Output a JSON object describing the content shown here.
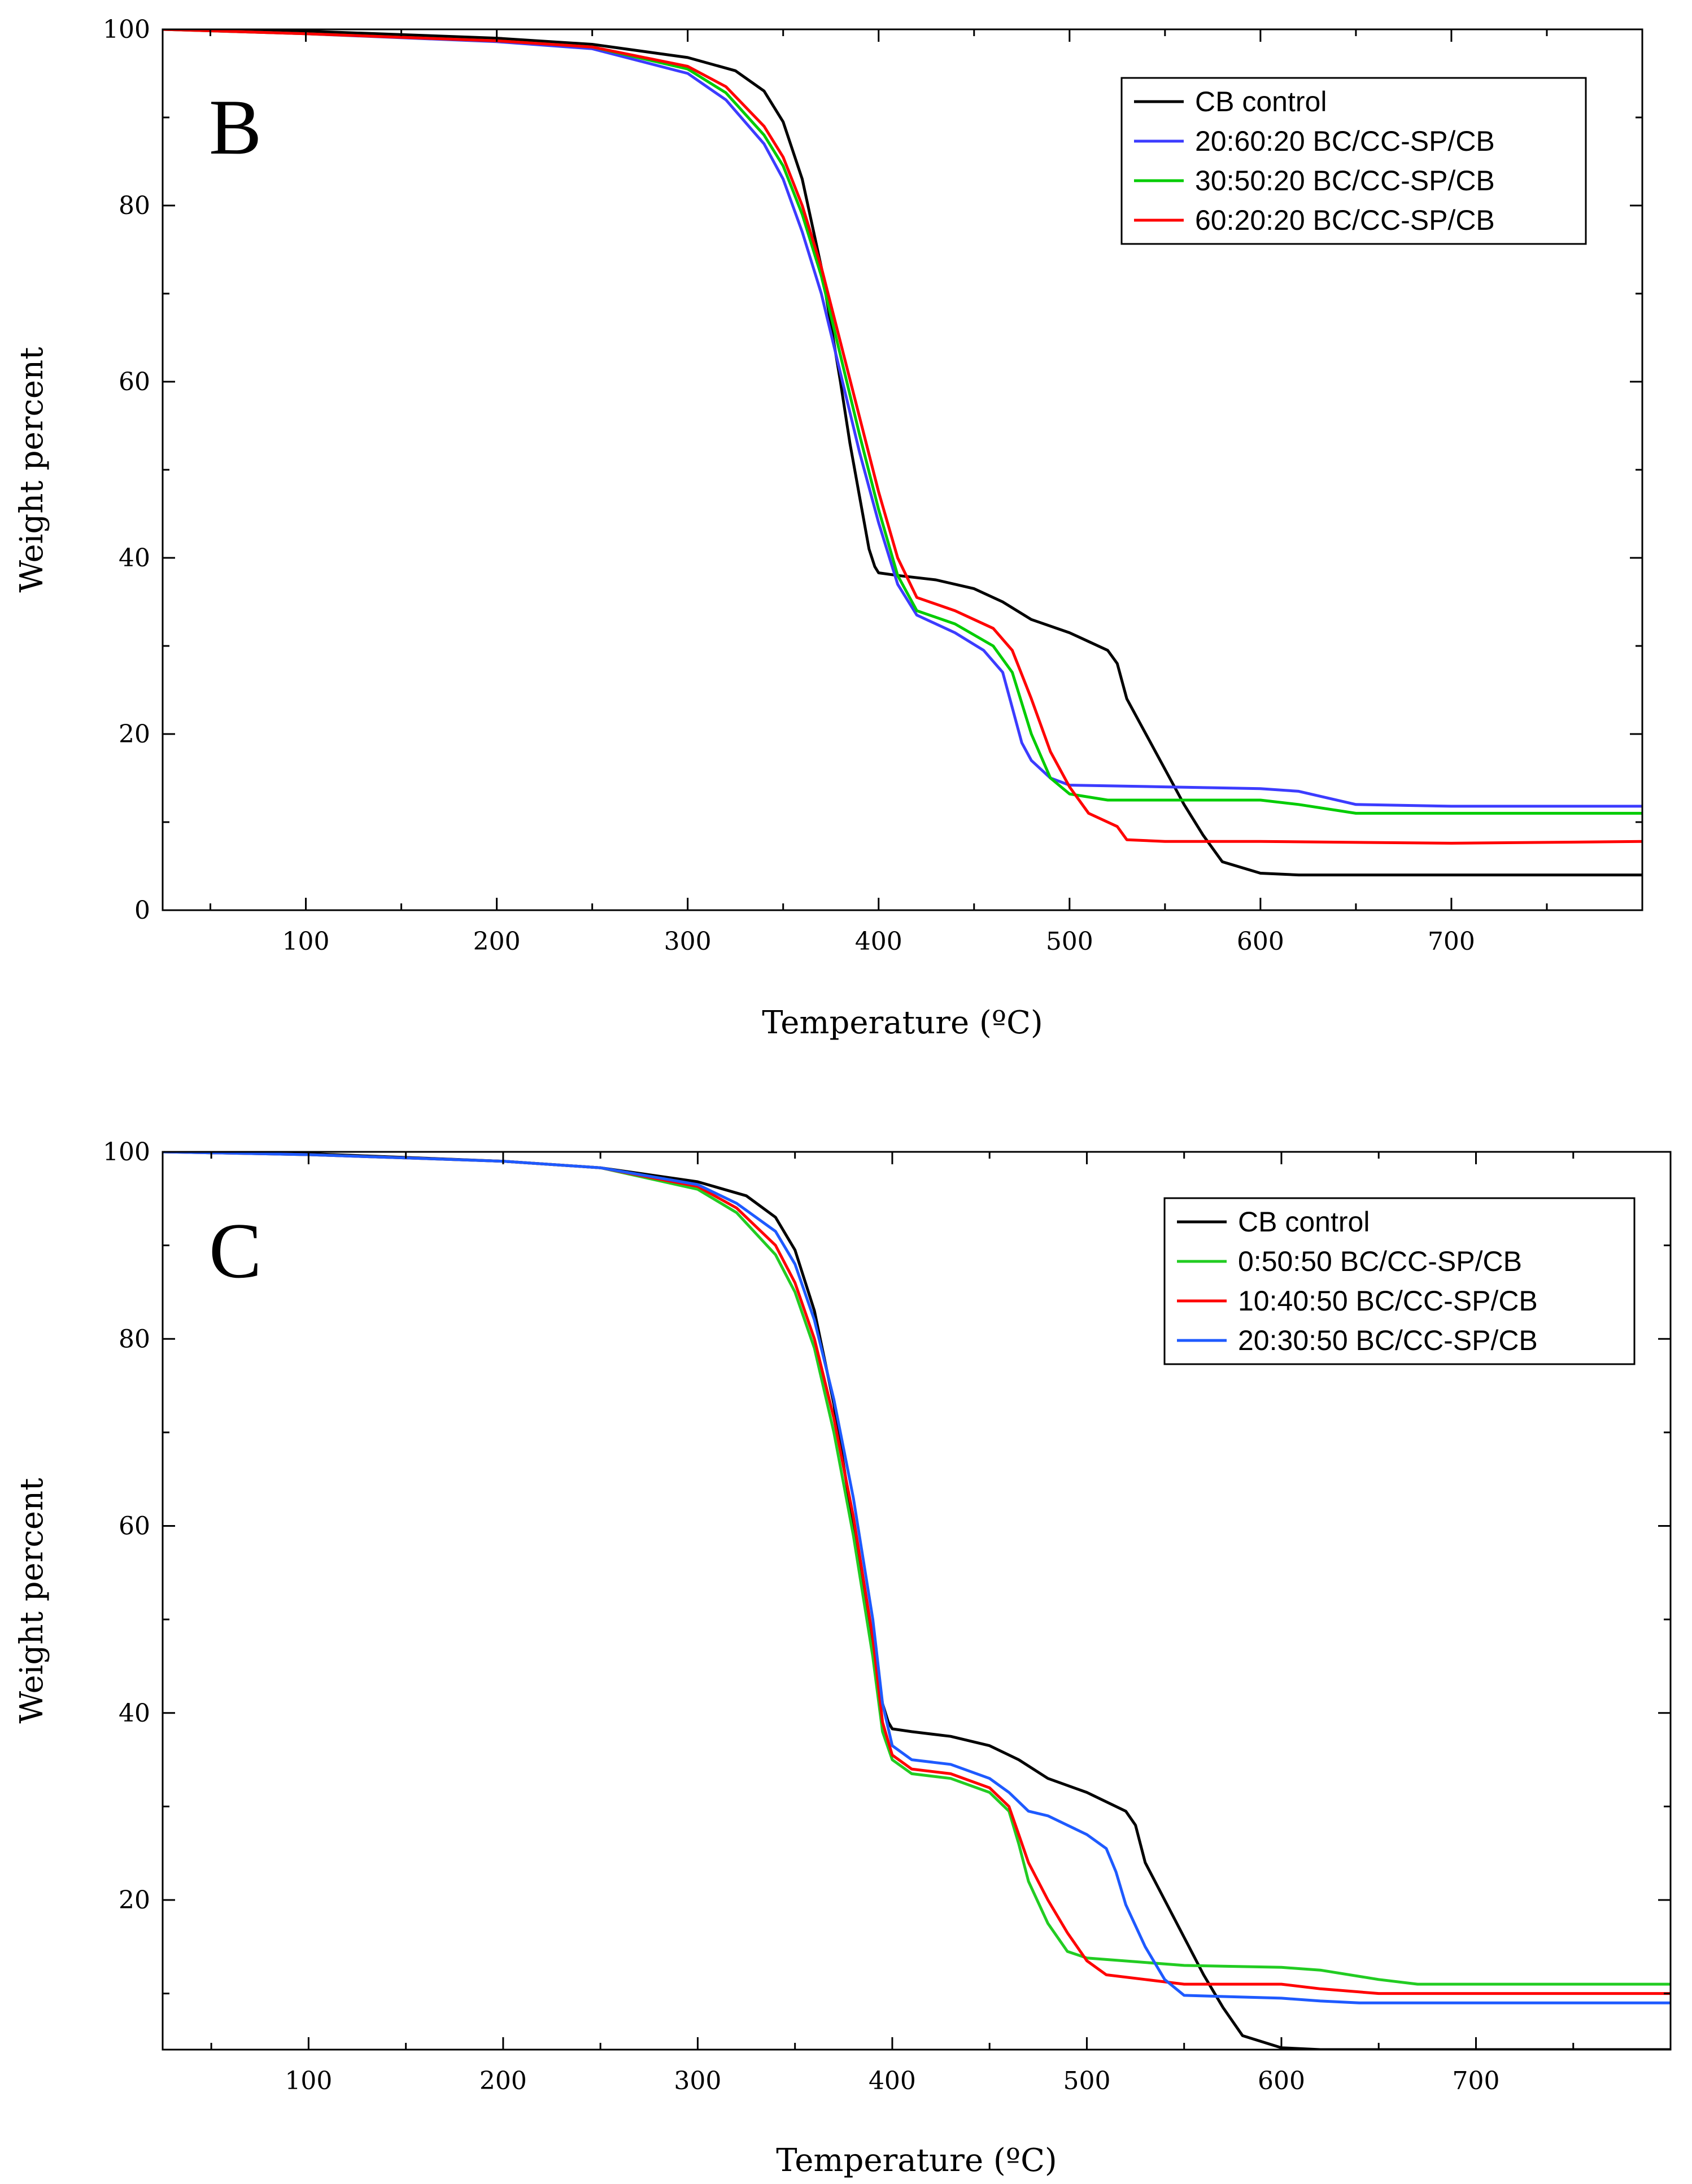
{
  "chart_data": [
    {
      "type": "line",
      "panel_label": "B",
      "xlabel": "Temperature (ºC)",
      "ylabel": "Weight percent",
      "xlim": [
        25,
        800
      ],
      "ylim": [
        0,
        100
      ],
      "xticks": [
        100,
        200,
        300,
        400,
        500,
        600,
        700
      ],
      "yticks": [
        0,
        20,
        40,
        60,
        80,
        100
      ],
      "grid": false,
      "legend_position": "top-right",
      "series": [
        {
          "name": "CB control",
          "color": "#000000",
          "x": [
            25,
            100,
            200,
            250,
            300,
            325,
            340,
            350,
            360,
            370,
            380,
            385,
            390,
            395,
            398,
            400,
            410,
            430,
            450,
            465,
            480,
            500,
            510,
            520,
            525,
            530,
            545,
            560,
            570,
            580,
            600,
            620,
            700,
            800
          ],
          "y": [
            100,
            99.8,
            99.0,
            98.3,
            96.8,
            95.3,
            93.0,
            89.5,
            83.0,
            73.0,
            60.0,
            53.0,
            47.0,
            41.0,
            39.0,
            38.3,
            38.0,
            37.5,
            36.5,
            35.0,
            33.0,
            31.5,
            30.5,
            29.5,
            28.0,
            24.0,
            18.0,
            12.0,
            8.5,
            5.5,
            4.2,
            4.0,
            4.0,
            4.0
          ]
        },
        {
          "name": "20:60:20 BC/CC-SP/CB",
          "color": "#3c3cff",
          "x": [
            25,
            100,
            200,
            250,
            300,
            320,
            340,
            350,
            360,
            370,
            380,
            390,
            400,
            410,
            420,
            440,
            455,
            465,
            470,
            475,
            480,
            490,
            500,
            550,
            600,
            620,
            650,
            700,
            800
          ],
          "y": [
            100,
            99.5,
            98.6,
            97.8,
            95.0,
            92.0,
            87.0,
            83.0,
            77.0,
            70.0,
            61.0,
            52.0,
            44.0,
            37.0,
            33.5,
            31.5,
            29.5,
            27.0,
            23.0,
            19.0,
            17.0,
            15.0,
            14.2,
            14.0,
            13.8,
            13.5,
            12.0,
            11.8,
            11.8
          ]
        },
        {
          "name": "30:50:20 BC/CC-SP/CB",
          "color": "#00cc00",
          "x": [
            25,
            100,
            200,
            250,
            300,
            320,
            340,
            350,
            360,
            370,
            380,
            390,
            400,
            410,
            420,
            440,
            460,
            470,
            480,
            490,
            500,
            520,
            600,
            620,
            650,
            700,
            800
          ],
          "y": [
            100,
            99.5,
            98.7,
            98.0,
            95.5,
            92.8,
            88.0,
            84.5,
            79.0,
            72.0,
            63.0,
            54.0,
            45.5,
            38.0,
            34.0,
            32.5,
            30.0,
            27.0,
            20.0,
            15.0,
            13.2,
            12.5,
            12.5,
            12.0,
            11.0,
            11.0,
            11.0
          ]
        },
        {
          "name": "60:20:20 BC/CC-SP/CB",
          "color": "#ff0000",
          "x": [
            25,
            100,
            200,
            250,
            300,
            320,
            340,
            350,
            360,
            370,
            380,
            390,
            400,
            410,
            420,
            440,
            460,
            470,
            480,
            490,
            500,
            510,
            520,
            525,
            530,
            550,
            600,
            700,
            800
          ],
          "y": [
            100,
            99.5,
            98.7,
            98.0,
            95.8,
            93.5,
            89.0,
            85.5,
            80.0,
            73.0,
            64.5,
            56.0,
            47.5,
            40.0,
            35.5,
            34.0,
            32.0,
            29.5,
            24.0,
            18.0,
            14.0,
            11.0,
            10.0,
            9.5,
            8.0,
            7.8,
            7.8,
            7.6,
            7.8
          ]
        }
      ]
    },
    {
      "type": "line",
      "panel_label": "C",
      "xlabel": "Temperature (ºC)",
      "ylabel": "Weight percent",
      "xlim": [
        25,
        800
      ],
      "ylim": [
        4,
        100
      ],
      "xticks": [
        100,
        200,
        300,
        400,
        500,
        600,
        700
      ],
      "yticks": [
        20,
        40,
        60,
        80,
        100
      ],
      "grid": false,
      "legend_position": "top-right",
      "series": [
        {
          "name": "CB control",
          "color": "#000000",
          "x": [
            25,
            100,
            200,
            250,
            300,
            325,
            340,
            350,
            360,
            370,
            380,
            385,
            390,
            395,
            398,
            400,
            410,
            430,
            450,
            465,
            480,
            500,
            510,
            520,
            525,
            530,
            545,
            560,
            570,
            580,
            600,
            620,
            700,
            800
          ],
          "y": [
            100,
            99.8,
            99.0,
            98.3,
            96.8,
            95.3,
            93.0,
            89.5,
            83.0,
            73.0,
            60.0,
            53.0,
            47.0,
            41.0,
            39.0,
            38.3,
            38.0,
            37.5,
            36.5,
            35.0,
            33.0,
            31.5,
            30.5,
            29.5,
            28.0,
            24.0,
            18.0,
            12.0,
            8.5,
            5.5,
            4.2,
            4.0,
            4.0,
            4.0
          ]
        },
        {
          "name": "0:50:50 BC/CC-SP/CB",
          "color": "#22cc22",
          "x": [
            25,
            100,
            200,
            250,
            300,
            320,
            340,
            350,
            360,
            370,
            380,
            390,
            395,
            400,
            410,
            430,
            450,
            460,
            465,
            470,
            480,
            490,
            500,
            550,
            600,
            620,
            650,
            670,
            700,
            800
          ],
          "y": [
            100,
            99.7,
            99.0,
            98.3,
            96.0,
            93.5,
            89.0,
            85.0,
            79.0,
            70.0,
            59.0,
            46.0,
            38.0,
            35.0,
            33.5,
            33.0,
            31.5,
            29.5,
            26.0,
            22.0,
            17.5,
            14.5,
            13.8,
            13.0,
            12.8,
            12.5,
            11.5,
            11.0,
            11.0,
            11.0
          ]
        },
        {
          "name": "10:40:50 BC/CC-SP/CB",
          "color": "#ff0000",
          "x": [
            25,
            100,
            200,
            250,
            300,
            320,
            340,
            350,
            360,
            370,
            380,
            390,
            395,
            400,
            410,
            430,
            450,
            460,
            465,
            470,
            480,
            490,
            500,
            510,
            530,
            550,
            600,
            620,
            650,
            700,
            800
          ],
          "y": [
            100,
            99.7,
            99.0,
            98.3,
            96.3,
            94.0,
            90.0,
            86.0,
            80.0,
            71.5,
            61.0,
            48.0,
            39.0,
            35.5,
            34.0,
            33.5,
            32.0,
            30.0,
            27.0,
            24.0,
            20.0,
            16.5,
            13.5,
            12.0,
            11.5,
            11.0,
            11.0,
            10.5,
            10.0,
            10.0,
            10.0
          ]
        },
        {
          "name": "20:30:50 BC/CC-SP/CB",
          "color": "#1e5aff",
          "x": [
            25,
            100,
            200,
            250,
            300,
            320,
            340,
            350,
            360,
            370,
            380,
            390,
            395,
            400,
            410,
            430,
            450,
            460,
            470,
            480,
            490,
            500,
            510,
            515,
            520,
            530,
            540,
            550,
            600,
            620,
            640,
            700,
            800
          ],
          "y": [
            100,
            99.7,
            99.0,
            98.3,
            96.5,
            94.5,
            91.5,
            88.0,
            82.0,
            73.5,
            63.0,
            50.0,
            41.0,
            36.5,
            35.0,
            34.5,
            33.0,
            31.5,
            29.5,
            29.0,
            28.0,
            27.0,
            25.5,
            23.0,
            19.5,
            15.0,
            11.5,
            9.8,
            9.5,
            9.2,
            9.0,
            9.0,
            9.0
          ]
        }
      ]
    }
  ]
}
